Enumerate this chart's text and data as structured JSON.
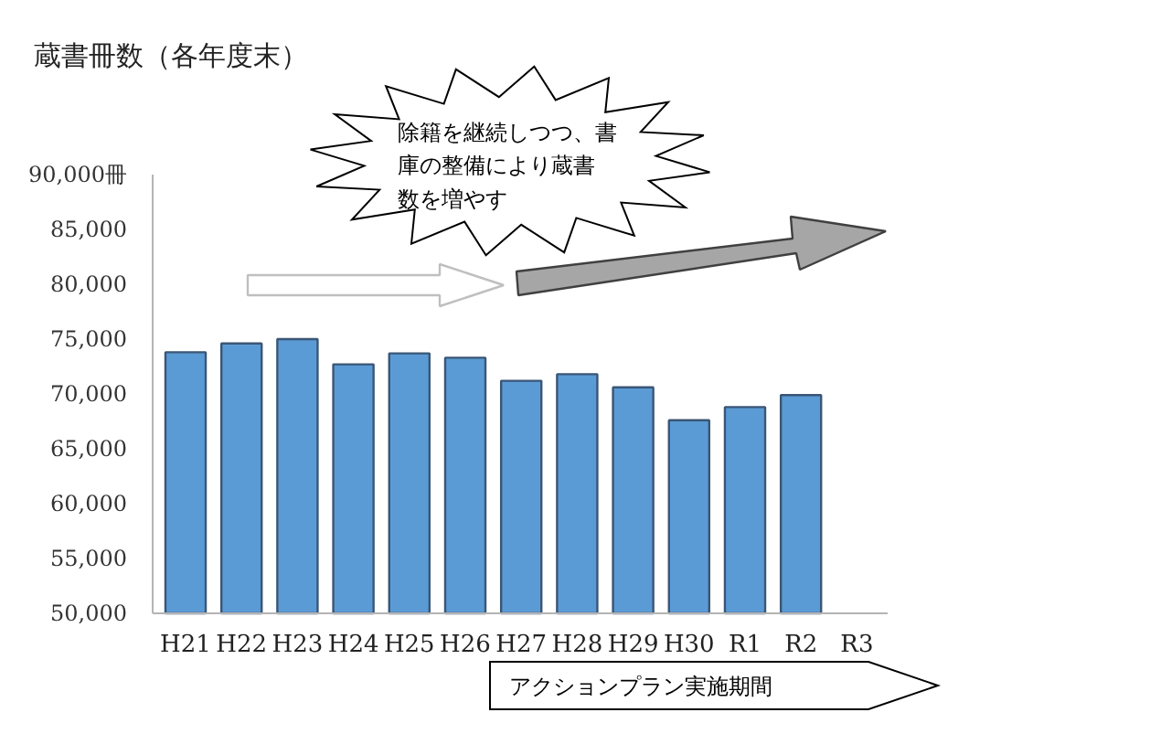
{
  "chart_data": {
    "type": "bar",
    "title": "蔵書冊数（各年度末）",
    "categories": [
      "H21",
      "H22",
      "H23",
      "H24",
      "H25",
      "H26",
      "H27",
      "H28",
      "H29",
      "H30",
      "R1",
      "R2",
      "R3"
    ],
    "values": [
      73800,
      74600,
      75000,
      72700,
      73700,
      73300,
      71200,
      71800,
      70600,
      67600,
      68800,
      69900,
      null
    ],
    "color": "#5b9bd5",
    "ylim": [
      50000,
      90000
    ],
    "yticks": [
      {
        "value": 50000,
        "label": "50,000"
      },
      {
        "value": 55000,
        "label": "55,000"
      },
      {
        "value": 60000,
        "label": "60,000"
      },
      {
        "value": 65000,
        "label": "65,000"
      },
      {
        "value": 70000,
        "label": "70,000"
      },
      {
        "value": 75000,
        "label": "75,000"
      },
      {
        "value": 80000,
        "label": "80,000"
      },
      {
        "value": 85000,
        "label": "85,000"
      },
      {
        "value": 90000,
        "label": "90,000冊"
      }
    ],
    "annotations": [
      "除籍を継続しつつ、書庫の整備により蔵書数を増やす",
      "アクションプラン実施期間"
    ]
  }
}
